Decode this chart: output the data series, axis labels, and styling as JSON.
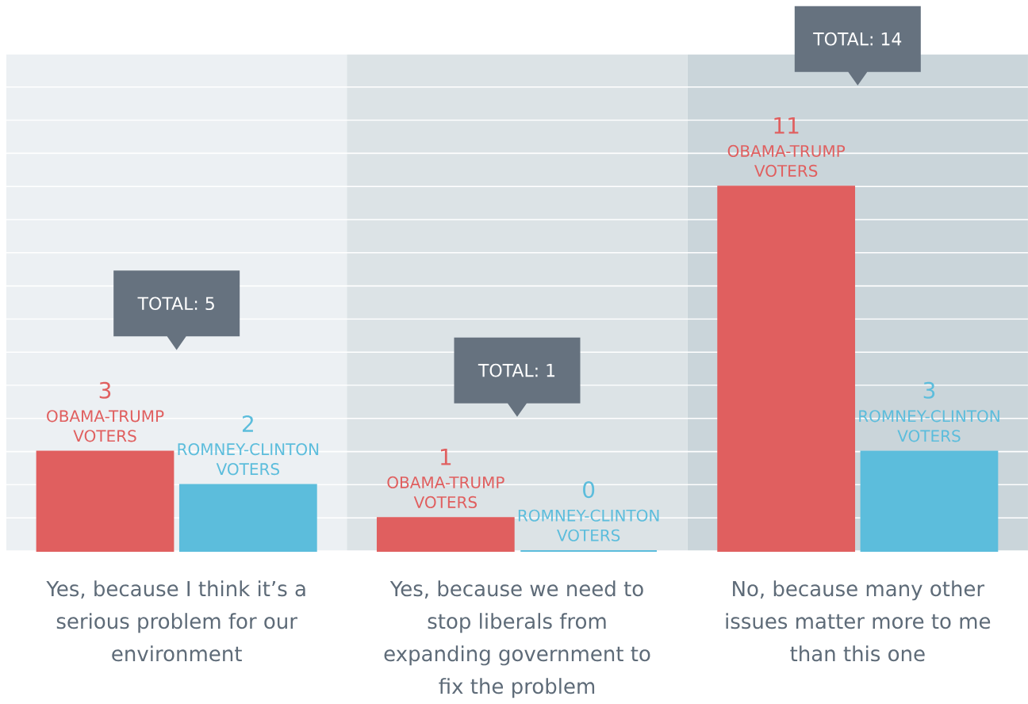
{
  "chart_data": {
    "type": "bar",
    "categories": [
      "Yes, because I think it’s a serious problem for our environment",
      "Yes, because we need to stop liberals from expanding government to fix the problem",
      "No, because many other issues matter more to me than this one"
    ],
    "series": [
      {
        "name": "OBAMA-TRUMP VOTERS",
        "color": "#e05f5f",
        "values": [
          3,
          1,
          11
        ]
      },
      {
        "name": "ROMNEY-CLINTON VOTERS",
        "color": "#5cbddc",
        "values": [
          2,
          0,
          3
        ]
      }
    ],
    "ylim": [
      0,
      15
    ],
    "yticks": [
      0,
      1,
      2,
      3,
      4,
      5,
      6,
      7,
      8,
      9,
      10,
      11,
      12,
      13,
      14,
      15
    ],
    "tick_labels": "x",
    "grid": "y",
    "data_labels": true,
    "annotations": [
      "TOTAL: 5",
      "TOTAL: 1",
      "TOTAL: 14"
    ],
    "bands": [
      {
        "axis": "x",
        "from": "Yes, because I think it’s a serious problem for our environment",
        "to": "Yes, because I think it’s a serious problem for our environment",
        "color": "#ecf0f3"
      },
      {
        "axis": "x",
        "from": "Yes, because we need to stop liberals from expanding government to fix the problem",
        "to": "Yes, because we need to stop liberals from expanding government to fix the problem",
        "color": "#dce3e6"
      },
      {
        "axis": "x",
        "from": "No, because many other issues matter more to me than this one",
        "to": "No, because many other issues matter more to me than this one",
        "color": "#cad5da"
      }
    ]
  }
}
